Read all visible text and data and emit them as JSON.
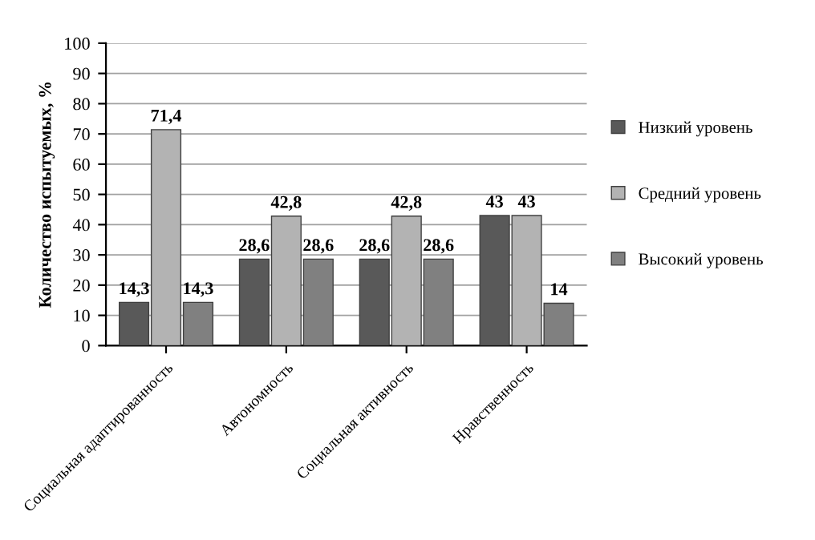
{
  "chart_data": {
    "type": "bar",
    "ylabel": "Количество испытуемых, %",
    "categories": [
      "Социальная адаптированность",
      "Автономность",
      "Социальная активность",
      "Нравственность"
    ],
    "series": [
      {
        "name": "Низкий уровень",
        "color": "#595959",
        "values": [
          14.3,
          28.6,
          28.6,
          43
        ],
        "value_labels": [
          "14,3",
          "28,6",
          "28,6",
          "43"
        ]
      },
      {
        "name": "Средний уровень",
        "color": "#b3b3b3",
        "values": [
          71.4,
          42.8,
          42.8,
          43
        ],
        "value_labels": [
          "71,4",
          "42,8",
          "42,8",
          "43"
        ]
      },
      {
        "name": "Высокий уровень",
        "color": "#808080",
        "values": [
          14.3,
          28.6,
          28.6,
          14
        ],
        "value_labels": [
          "14,3",
          "28,6",
          "28,6",
          "14"
        ]
      }
    ],
    "ylim": [
      0,
      100
    ],
    "yticks": [
      0,
      10,
      20,
      30,
      40,
      50,
      60,
      70,
      80,
      90,
      100
    ],
    "grid": "y",
    "legend": "right"
  }
}
